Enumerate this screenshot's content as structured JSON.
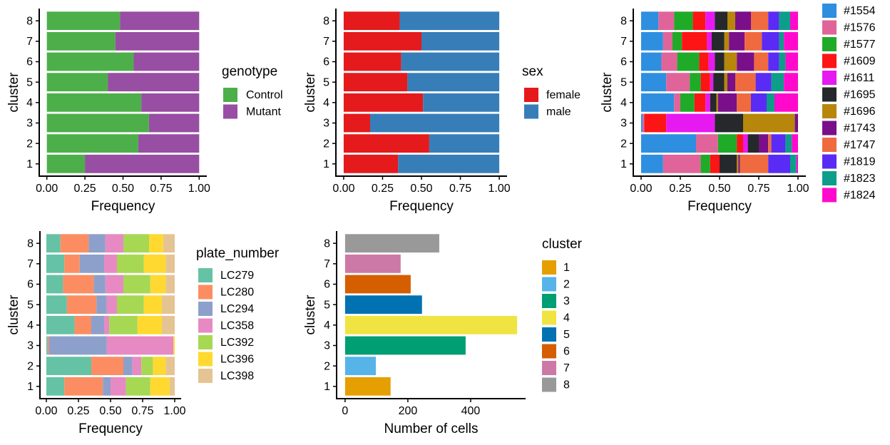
{
  "chart_data": [
    {
      "type": "stacked_bar",
      "orientation": "horizontal",
      "xlabel": "Frequency",
      "ylabel": "cluster",
      "legend_title": "genotype",
      "categories": [
        "1",
        "2",
        "3",
        "4",
        "5",
        "6",
        "7",
        "8"
      ],
      "series": [
        {
          "name": "Control",
          "color": "#4daf4a",
          "values": [
            0.25,
            0.6,
            0.67,
            0.62,
            0.4,
            0.57,
            0.45,
            0.48
          ]
        },
        {
          "name": "Mutant",
          "color": "#984ea3",
          "values": [
            0.75,
            0.4,
            0.33,
            0.38,
            0.6,
            0.43,
            0.55,
            0.52
          ]
        }
      ],
      "xlim": [
        -0.05,
        1.05
      ],
      "xticks": [
        {
          "value": 0,
          "label": "0.00"
        },
        {
          "value": 0.25,
          "label": "0.25"
        },
        {
          "value": 0.5,
          "label": "0.50"
        },
        {
          "value": 0.75,
          "label": "0.75"
        },
        {
          "value": 1,
          "label": "1.00"
        }
      ],
      "grid": false
    },
    {
      "type": "stacked_bar",
      "orientation": "horizontal",
      "xlabel": "Frequency",
      "ylabel": "cluster",
      "legend_title": "sex",
      "categories": [
        "1",
        "2",
        "3",
        "4",
        "5",
        "6",
        "7",
        "8"
      ],
      "series": [
        {
          "name": "female",
          "color": "#e41a1c",
          "values": [
            0.35,
            0.55,
            0.17,
            0.51,
            0.41,
            0.37,
            0.5,
            0.36
          ]
        },
        {
          "name": "male",
          "color": "#377eb8",
          "values": [
            0.65,
            0.45,
            0.83,
            0.49,
            0.59,
            0.63,
            0.5,
            0.64
          ]
        }
      ],
      "xlim": [
        -0.05,
        1.05
      ],
      "xticks": [
        {
          "value": 0,
          "label": "0.00"
        },
        {
          "value": 0.25,
          "label": "0.25"
        },
        {
          "value": 0.5,
          "label": "0.50"
        },
        {
          "value": 0.75,
          "label": "0.75"
        },
        {
          "value": 1,
          "label": "1.00"
        }
      ],
      "grid": false
    },
    {
      "type": "stacked_bar",
      "orientation": "horizontal",
      "xlabel": "Frequency",
      "ylabel": "cluster",
      "categories": [
        "1",
        "2",
        "3",
        "4",
        "5",
        "6",
        "7",
        "8"
      ],
      "series": [
        {
          "name": "#1554",
          "color": "#2e8fe0",
          "values": [
            0.14,
            0.35,
            0.01,
            0.21,
            0.16,
            0.13,
            0.14,
            0.11
          ]
        },
        {
          "name": "#1576",
          "color": "#e0649a",
          "values": [
            0.24,
            0.14,
            0.01,
            0.04,
            0.15,
            0.1,
            0.06,
            0.1
          ]
        },
        {
          "name": "#1577",
          "color": "#1fab28",
          "values": [
            0.06,
            0.12,
            0,
            0.09,
            0.07,
            0.14,
            0.06,
            0.12
          ]
        },
        {
          "name": "#1609",
          "color": "#fd1414",
          "values": [
            0.06,
            0.04,
            0.14,
            0.07,
            0.06,
            0.06,
            0.16,
            0.08
          ]
        },
        {
          "name": "#1611",
          "color": "#e619f0",
          "values": [
            0,
            0.03,
            0.31,
            0.03,
            0.02,
            0.04,
            0.03,
            0.06
          ]
        },
        {
          "name": "#1695",
          "color": "#25292c",
          "values": [
            0.11,
            0.07,
            0.18,
            0.04,
            0.07,
            0.06,
            0.08,
            0.08
          ]
        },
        {
          "name": "#1696",
          "color": "#b7860b",
          "values": [
            0.01,
            0,
            0.33,
            0.01,
            0.02,
            0.08,
            0.03,
            0.05
          ]
        },
        {
          "name": "#1743",
          "color": "#7a0f8a",
          "values": [
            0.01,
            0.06,
            0.02,
            0.12,
            0.05,
            0.11,
            0.1,
            0.1
          ]
        },
        {
          "name": "#1747",
          "color": "#f06a3f",
          "values": [
            0.18,
            0.02,
            0,
            0.09,
            0.13,
            0.09,
            0.11,
            0.11
          ]
        },
        {
          "name": "#1819",
          "color": "#5a2bf5",
          "values": [
            0.14,
            0.09,
            0,
            0.1,
            0.1,
            0.07,
            0.11,
            0.07
          ]
        },
        {
          "name": "#1823",
          "color": "#0d9e8a",
          "values": [
            0.04,
            0.04,
            0,
            0.05,
            0.08,
            0.04,
            0.03,
            0.07
          ]
        },
        {
          "name": "#1824",
          "color": "#ff0acd",
          "values": [
            0.01,
            0.04,
            0,
            0.15,
            0.09,
            0.08,
            0.09,
            0.05
          ]
        }
      ],
      "xlim": [
        -0.05,
        1.05
      ],
      "xticks": [
        {
          "value": 0,
          "label": "0.00"
        },
        {
          "value": 0.25,
          "label": "0.25"
        },
        {
          "value": 0.5,
          "label": "0.50"
        },
        {
          "value": 0.75,
          "label": "0.75"
        },
        {
          "value": 1,
          "label": "1.00"
        }
      ],
      "grid": false
    },
    {
      "type": "stacked_bar",
      "orientation": "horizontal",
      "xlabel": "Frequency",
      "ylabel": "cluster",
      "legend_title": "plate_number",
      "categories": [
        "1",
        "2",
        "3",
        "4",
        "5",
        "6",
        "7",
        "8"
      ],
      "series": [
        {
          "name": "LC279",
          "color": "#66c2a5",
          "values": [
            0.14,
            0.35,
            0.01,
            0.22,
            0.16,
            0.13,
            0.14,
            0.11
          ]
        },
        {
          "name": "LC280",
          "color": "#fc8d62",
          "values": [
            0.3,
            0.25,
            0.01,
            0.13,
            0.23,
            0.24,
            0.12,
            0.22
          ]
        },
        {
          "name": "LC294",
          "color": "#8da0cb",
          "values": [
            0.06,
            0.07,
            0.45,
            0.1,
            0.08,
            0.09,
            0.19,
            0.13
          ]
        },
        {
          "name": "LC358",
          "color": "#e78ac3",
          "values": [
            0.12,
            0.07,
            0.52,
            0.04,
            0.08,
            0.14,
            0.1,
            0.14
          ]
        },
        {
          "name": "LC392",
          "color": "#a6d854",
          "values": [
            0.19,
            0.09,
            0,
            0.22,
            0.21,
            0.21,
            0.21,
            0.2
          ]
        },
        {
          "name": "LC396",
          "color": "#ffd92f",
          "values": [
            0.15,
            0.1,
            0.01,
            0.19,
            0.14,
            0.12,
            0.17,
            0.11
          ]
        },
        {
          "name": "LC398",
          "color": "#e5c494",
          "values": [
            0.04,
            0.07,
            0,
            0.1,
            0.1,
            0.07,
            0.07,
            0.09
          ]
        }
      ],
      "xlim": [
        -0.05,
        1.05
      ],
      "xticks": [
        {
          "value": 0,
          "label": "0.00"
        },
        {
          "value": 0.25,
          "label": "0.25"
        },
        {
          "value": 0.5,
          "label": "0.50"
        },
        {
          "value": 0.75,
          "label": "0.75"
        },
        {
          "value": 1,
          "label": "1.00"
        }
      ],
      "grid": false
    },
    {
      "type": "bar",
      "orientation": "horizontal",
      "xlabel": "Number of cells",
      "ylabel": "cluster",
      "legend_title": "cluster",
      "categories": [
        "1",
        "2",
        "3",
        "4",
        "5",
        "6",
        "7",
        "8"
      ],
      "values": [
        145,
        98,
        384,
        548,
        245,
        209,
        177,
        300
      ],
      "colors": [
        "#E69F00",
        "#56B4E9",
        "#009E73",
        "#F0E442",
        "#0072B2",
        "#D55E00",
        "#CC79A7",
        "#999999"
      ],
      "xlim": [
        -27,
        575
      ],
      "xticks": [
        0,
        200,
        400
      ],
      "grid": false
    }
  ]
}
